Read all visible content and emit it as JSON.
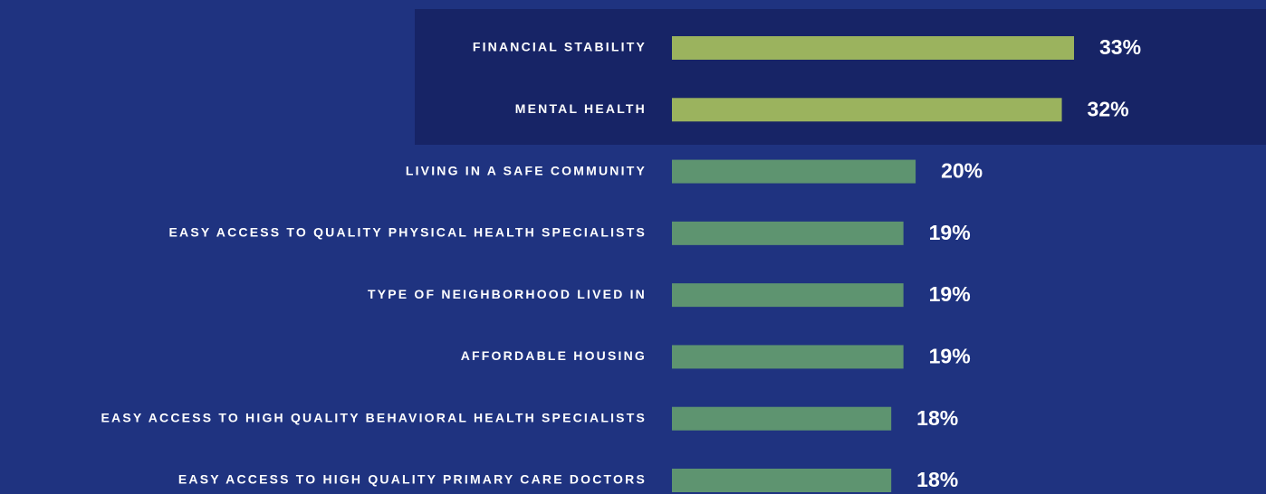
{
  "chart_data": {
    "type": "bar",
    "orientation": "horizontal",
    "categories": [
      "FINANCIAL STABILITY",
      "MENTAL HEALTH",
      "LIVING IN A SAFE COMMUNITY",
      "EASY ACCESS TO QUALITY PHYSICAL HEALTH SPECIALISTS",
      "TYPE OF NEIGHBORHOOD LIVED IN",
      "AFFORDABLE HOUSING",
      "EASY ACCESS TO HIGH QUALITY BEHAVIORAL HEALTH SPECIALISTS",
      "EASY ACCESS TO HIGH QUALITY PRIMARY CARE DOCTORS"
    ],
    "values": [
      33,
      32,
      20,
      19,
      19,
      19,
      18,
      18
    ],
    "value_labels": [
      "33%",
      "32%",
      "20%",
      "19%",
      "19%",
      "19%",
      "18%",
      "18%"
    ],
    "colors": [
      "#9bb35e",
      "#9bb35e",
      "#5e9470",
      "#5e9470",
      "#5e9470",
      "#5e9470",
      "#5e9470",
      "#5e9470"
    ],
    "xlim": [
      0,
      33
    ]
  }
}
